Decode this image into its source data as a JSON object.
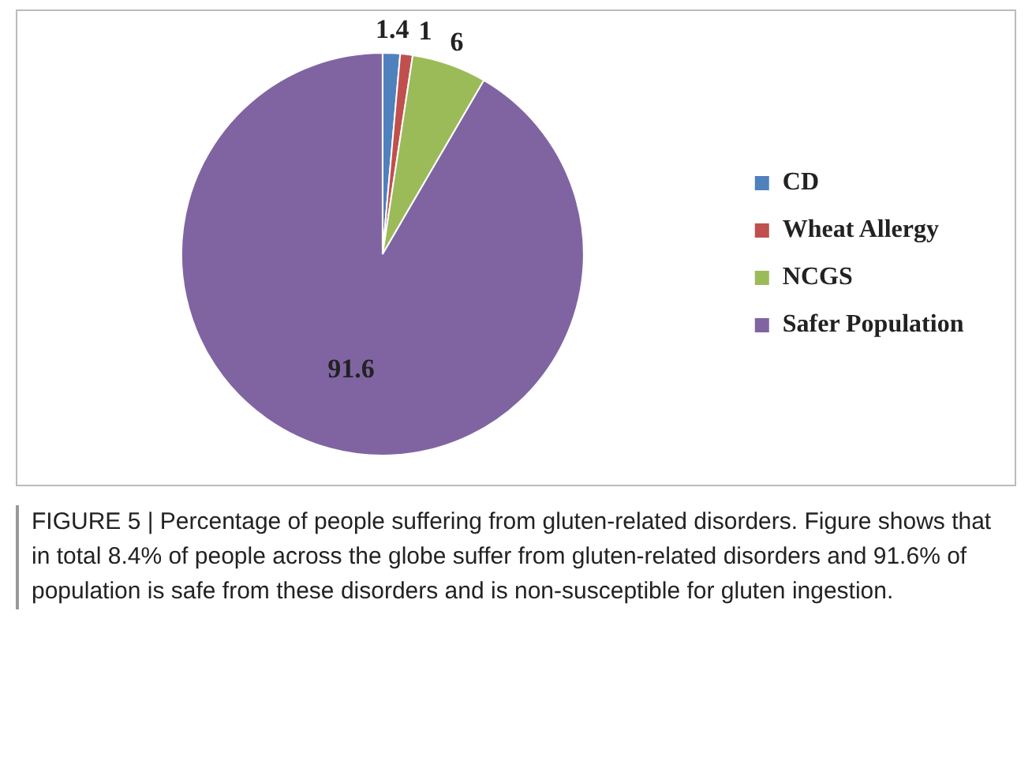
{
  "chart_data": {
    "type": "pie",
    "categories": [
      "CD",
      "Wheat Allergy",
      "NCGS",
      "Safer Population"
    ],
    "values": [
      1.4,
      1,
      6,
      91.6
    ],
    "colors": [
      "#4f81bd",
      "#c0504d",
      "#9bbb59",
      "#8064a2"
    ],
    "data_labels": true,
    "legend": "right",
    "annotations": [
      "FIGURE 5 | Percentage of people suffering from gluten-related disorders. Figure shows that in total 8.4% of people across the globe suffer from gluten-related disorders and 91.6% of population is safe from these disorders and is non-susceptible for gluten ingestion."
    ]
  }
}
